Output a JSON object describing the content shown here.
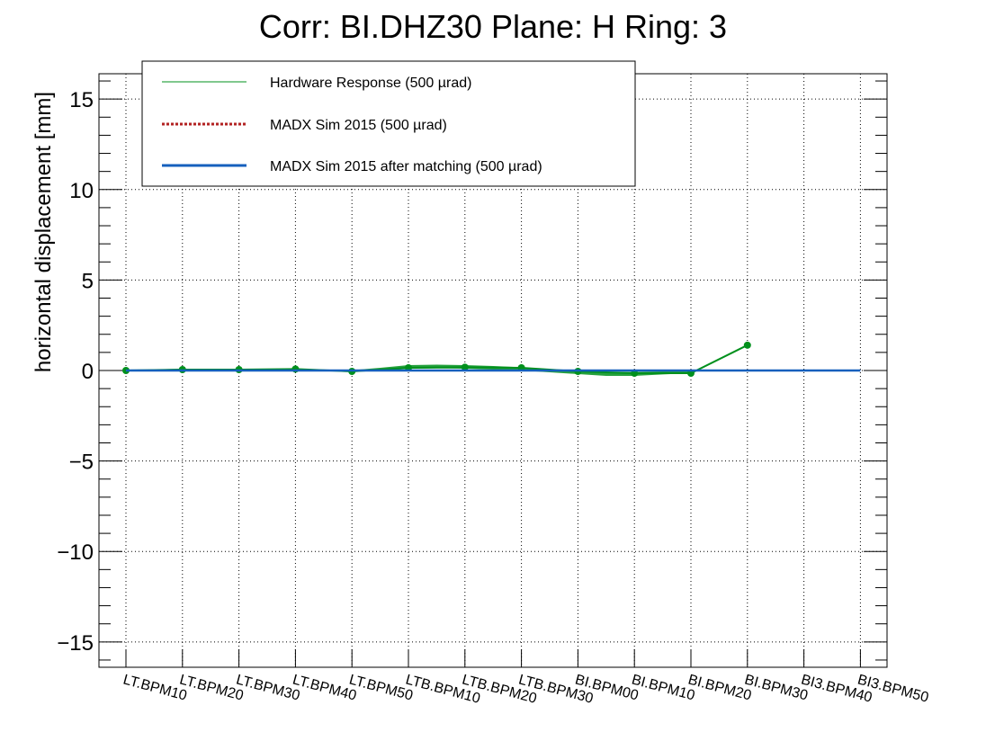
{
  "chart_data": {
    "type": "line",
    "title": "Corr: BI.DHZ30 Plane: H Ring: 3",
    "xlabel": "",
    "ylabel": "horizontal displacement [mm]",
    "ylim": [
      -16.4,
      16.4
    ],
    "yticks": [
      -15,
      -10,
      -5,
      0,
      5,
      10,
      15
    ],
    "grid": true,
    "legend_placement": "top-left",
    "categories": [
      "LT.BPM10",
      "LT.BPM20",
      "LT.BPM30",
      "LT.BPM40",
      "LT.BPM50",
      "LTB.BPM10",
      "LTB.BPM20",
      "LTB.BPM30",
      "BI.BPM00",
      "BI.BPM10",
      "BI.BPM20",
      "BI.BPM30",
      "BI3.BPM40",
      "BI3.BPM50"
    ],
    "series": [
      {
        "name": "Hardware Response (500 µrad)",
        "color": "#00901c",
        "style": "solid-thin-markers",
        "x": [
          0,
          1,
          2,
          3,
          4,
          5,
          6,
          7,
          8,
          9,
          10,
          11
        ],
        "values": [
          0.0,
          0.05,
          0.05,
          0.08,
          -0.05,
          0.15,
          0.18,
          0.15,
          -0.05,
          -0.15,
          -0.15,
          1.4
        ],
        "band_x": [
          0,
          1,
          2,
          3,
          4,
          4.5,
          5,
          5.5,
          6,
          6.5,
          7,
          7.5,
          8,
          8.5,
          9,
          9.5,
          10
        ],
        "band_upper": [
          0.02,
          0.1,
          0.1,
          0.08,
          0.02,
          0.15,
          0.3,
          0.32,
          0.3,
          0.25,
          0.18,
          0.08,
          -0.05,
          -0.08,
          -0.08,
          -0.05,
          0.0
        ],
        "band_lower": [
          -0.02,
          0.02,
          0.02,
          0.0,
          -0.05,
          -0.05,
          0.1,
          0.12,
          0.1,
          0.05,
          0.0,
          -0.1,
          -0.2,
          -0.3,
          -0.3,
          -0.22,
          -0.15
        ]
      },
      {
        "name": "MADX Sim 2015 (500 µrad)",
        "color": "#b22222",
        "style": "dotted",
        "x": [
          0,
          13
        ],
        "values": [
          0,
          0
        ]
      },
      {
        "name": "MADX Sim 2015 after matching (500 µrad)",
        "color": "#1560bd",
        "style": "solid-thick",
        "x": [
          0,
          13
        ],
        "values": [
          0,
          0
        ]
      }
    ]
  }
}
